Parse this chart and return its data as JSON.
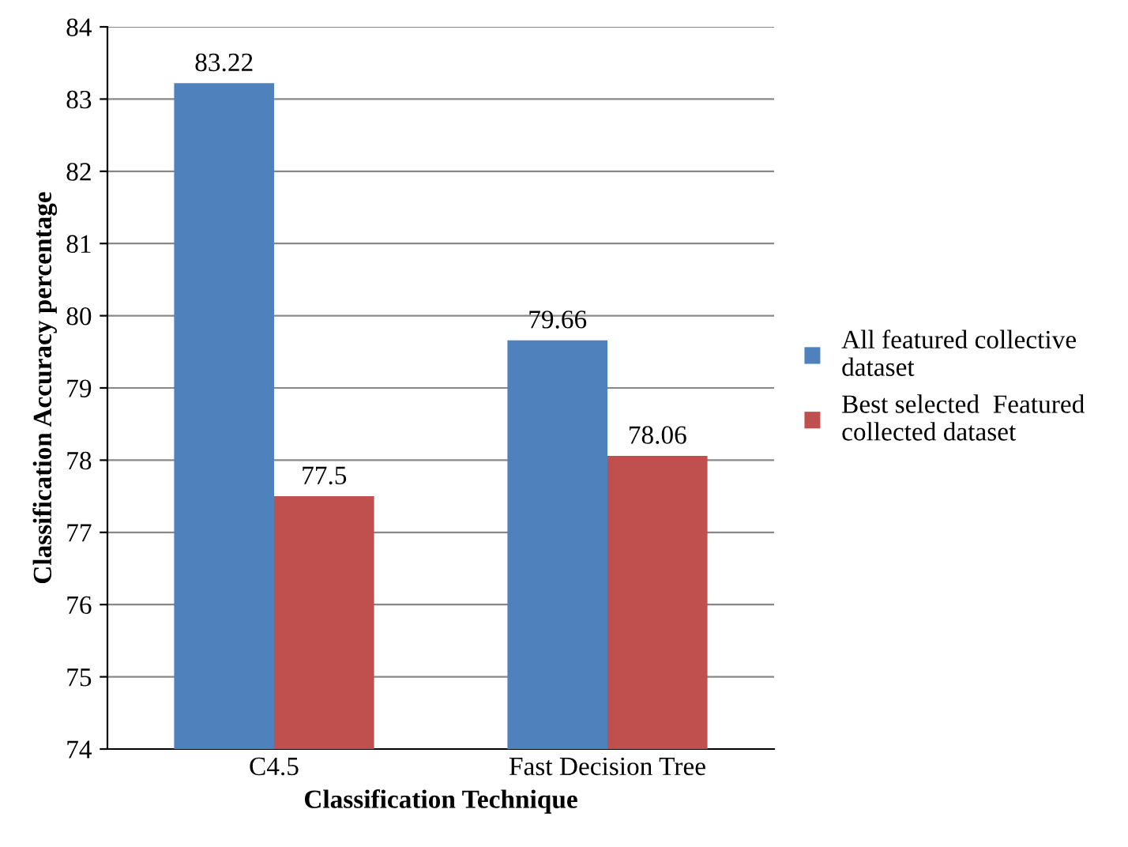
{
  "chart_data": {
    "type": "bar",
    "xlabel": "Classification Technique",
    "ylabel": "Classification Accuracy percentage",
    "categories": [
      "C4.5",
      "Fast Decision Tree"
    ],
    "series": [
      {
        "name": "All featured collective dataset",
        "color": "#4f81bd",
        "values": [
          83.22,
          79.66
        ]
      },
      {
        "name": "Best selected  Featured collected dataset",
        "color": "#c0504d",
        "values": [
          77.5,
          78.06
        ]
      }
    ],
    "ylim": [
      74,
      84
    ],
    "yticks": [
      74,
      75,
      76,
      77,
      78,
      79,
      80,
      81,
      82,
      83,
      84
    ],
    "grid": "y",
    "legend": "right",
    "data_labels": true
  }
}
